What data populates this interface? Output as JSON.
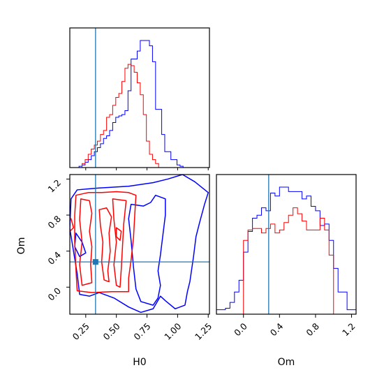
{
  "chart_data": {
    "type": "corner",
    "parameters": [
      "H0",
      "Om"
    ],
    "truth": {
      "H0": 0.33,
      "Om": 0.28
    },
    "colors": {
      "series_a": "#0000ff",
      "series_b": "#ff0000",
      "truth": "#1f77b4"
    },
    "axes": {
      "H0": {
        "label": "H0",
        "range": [
          0.12,
          1.26
        ],
        "ticks": [
          0.25,
          0.5,
          0.75,
          1.0,
          1.25
        ],
        "tick_labels": [
          "0.25",
          "0.50",
          "0.75",
          "1.00",
          "1.25"
        ]
      },
      "Om": {
        "label": "Om",
        "range": [
          -0.3,
          1.25
        ],
        "ticks": [
          0.0,
          0.4,
          0.8,
          1.2
        ],
        "tick_labels": [
          "0.0",
          "0.4",
          "0.8",
          "1.2"
        ]
      }
    },
    "hist_H0": {
      "edges": [
        0.12,
        0.145,
        0.17,
        0.195,
        0.22,
        0.245,
        0.27,
        0.295,
        0.32,
        0.345,
        0.37,
        0.395,
        0.42,
        0.445,
        0.47,
        0.495,
        0.52,
        0.545,
        0.57,
        0.595,
        0.62,
        0.645,
        0.67,
        0.695,
        0.72,
        0.745,
        0.77,
        0.795,
        0.82,
        0.845,
        0.87,
        0.895,
        0.92,
        0.945,
        0.97,
        0.995,
        1.02,
        1.045,
        1.07,
        1.095,
        1.12,
        1.145,
        1.17,
        1.195,
        1.22,
        1.245
      ],
      "series": [
        {
          "color": "#0000ff",
          "values": [
            0,
            0,
            0,
            0.01,
            0.02,
            0.04,
            0.06,
            0.09,
            0.12,
            0.15,
            0.18,
            0.22,
            0.24,
            0.28,
            0.34,
            0.38,
            0.39,
            0.4,
            0.43,
            0.58,
            0.82,
            0.82,
            0.88,
            0.96,
            0.96,
            0.96,
            0.92,
            0.8,
            0.44,
            0.44,
            0.25,
            0.12,
            0.12,
            0.06,
            0.06,
            0.02,
            0.01,
            0,
            0,
            0,
            0,
            0,
            0,
            0,
            0
          ]
        },
        {
          "color": "#ff0000",
          "values": [
            0,
            0,
            0,
            0,
            0.03,
            0.06,
            0.1,
            0.14,
            0.17,
            0.2,
            0.25,
            0.28,
            0.38,
            0.4,
            0.47,
            0.53,
            0.56,
            0.65,
            0.75,
            0.78,
            0.77,
            0.72,
            0.64,
            0.55,
            0.4,
            0.2,
            0.1,
            0.06,
            0.03,
            0,
            0,
            0,
            0,
            0,
            0,
            0,
            0,
            0,
            0,
            0,
            0,
            0,
            0,
            0,
            0
          ]
        }
      ]
    },
    "hist_Om": {
      "edges": [
        -0.3,
        -0.25,
        -0.2,
        -0.15,
        -0.1,
        -0.05,
        0.0,
        0.05,
        0.1,
        0.15,
        0.2,
        0.25,
        0.3,
        0.35,
        0.4,
        0.45,
        0.5,
        0.55,
        0.6,
        0.65,
        0.7,
        0.75,
        0.8,
        0.85,
        0.9,
        0.95,
        1.0,
        1.05,
        1.1,
        1.15,
        1.2,
        1.25
      ],
      "series": [
        {
          "color": "#0000ff",
          "values": [
            0.03,
            0.03,
            0.04,
            0.08,
            0.15,
            0.23,
            0.42,
            0.56,
            0.65,
            0.67,
            0.72,
            0.7,
            0.82,
            0.8,
            0.86,
            0.86,
            0.83,
            0.83,
            0.83,
            0.78,
            0.8,
            0.73,
            0.7,
            0.6,
            0.61,
            0.5,
            0.31,
            0.15,
            0.15,
            0.03,
            0.03
          ]
        },
        {
          "color": "#ff0000",
          "values": [
            0,
            0,
            0,
            0,
            0,
            0,
            0.5,
            0.57,
            0.58,
            0.58,
            0.55,
            0.58,
            0.61,
            0.55,
            0.57,
            0.62,
            0.67,
            0.72,
            0.68,
            0.63,
            0.57,
            0.57,
            0.57,
            0.65,
            0.57,
            0.4,
            0,
            0,
            0,
            0,
            0
          ]
        }
      ]
    },
    "contours": [
      {
        "color": "#0000ff",
        "paths": [
          [
            [
              0.13,
              0.98
            ],
            [
              0.18,
              1.08
            ],
            [
              0.35,
              1.1
            ],
            [
              0.6,
              1.12
            ],
            [
              0.8,
              1.16
            ],
            [
              0.92,
              1.2
            ],
            [
              1.04,
              1.25
            ],
            [
              1.14,
              1.17
            ],
            [
              1.25,
              1.05
            ],
            [
              1.22,
              0.92
            ],
            [
              1.18,
              0.72
            ],
            [
              1.15,
              0.56
            ],
            [
              1.13,
              0.34
            ],
            [
              1.1,
              0.06
            ],
            [
              1.08,
              -0.05
            ],
            [
              1.06,
              -0.2
            ],
            [
              0.98,
              -0.24
            ],
            [
              0.9,
              -0.15
            ],
            [
              0.86,
              -0.1
            ],
            [
              0.8,
              -0.24
            ],
            [
              0.7,
              -0.28
            ],
            [
              0.6,
              -0.22
            ],
            [
              0.48,
              -0.12
            ],
            [
              0.36,
              -0.06
            ],
            [
              0.28,
              -0.1
            ],
            [
              0.2,
              -0.08
            ],
            [
              0.18,
              0.15
            ],
            [
              0.15,
              0.4
            ],
            [
              0.12,
              0.65
            ],
            [
              0.13,
              0.98
            ]
          ],
          [
            [
              0.62,
              0.92
            ],
            [
              0.72,
              0.9
            ],
            [
              0.78,
              0.94
            ],
            [
              0.82,
              1.02
            ],
            [
              0.9,
              0.98
            ],
            [
              0.9,
              0.8
            ],
            [
              0.88,
              0.58
            ],
            [
              0.86,
              0.36
            ],
            [
              0.84,
              0.18
            ],
            [
              0.86,
              0.02
            ],
            [
              0.84,
              -0.12
            ],
            [
              0.8,
              -0.2
            ],
            [
              0.7,
              -0.16
            ],
            [
              0.66,
              -0.02
            ],
            [
              0.64,
              0.22
            ],
            [
              0.62,
              0.52
            ],
            [
              0.6,
              0.76
            ],
            [
              0.62,
              0.92
            ]
          ],
          [
            [
              0.17,
              0.6
            ],
            [
              0.22,
              0.5
            ],
            [
              0.25,
              0.38
            ],
            [
              0.2,
              0.34
            ],
            [
              0.16,
              0.45
            ],
            [
              0.17,
              0.6
            ]
          ]
        ]
      },
      {
        "color": "#ff0000",
        "paths": [
          [
            [
              0.17,
              1.02
            ],
            [
              0.27,
              1.05
            ],
            [
              0.38,
              1.05
            ],
            [
              0.5,
              1.06
            ],
            [
              0.6,
              1.05
            ],
            [
              0.66,
              1.02
            ],
            [
              0.65,
              0.8
            ],
            [
              0.64,
              0.55
            ],
            [
              0.62,
              0.3
            ],
            [
              0.6,
              0.1
            ],
            [
              0.6,
              -0.05
            ],
            [
              0.46,
              -0.05
            ],
            [
              0.3,
              -0.06
            ],
            [
              0.18,
              -0.04
            ],
            [
              0.17,
              0.2
            ],
            [
              0.16,
              0.5
            ],
            [
              0.16,
              0.8
            ],
            [
              0.17,
              1.02
            ]
          ],
          [
            [
              0.21,
              0.98
            ],
            [
              0.28,
              0.96
            ],
            [
              0.3,
              0.82
            ],
            [
              0.28,
              0.62
            ],
            [
              0.3,
              0.45
            ],
            [
              0.29,
              0.25
            ],
            [
              0.3,
              0.05
            ],
            [
              0.22,
              0.02
            ],
            [
              0.2,
              0.25
            ],
            [
              0.22,
              0.5
            ],
            [
              0.2,
              0.75
            ],
            [
              0.21,
              0.98
            ]
          ],
          [
            [
              0.36,
              0.86
            ],
            [
              0.42,
              0.88
            ],
            [
              0.46,
              0.78
            ],
            [
              0.44,
              0.6
            ],
            [
              0.45,
              0.4
            ],
            [
              0.43,
              0.18
            ],
            [
              0.44,
              0.06
            ],
            [
              0.4,
              0.08
            ],
            [
              0.38,
              0.28
            ],
            [
              0.39,
              0.5
            ],
            [
              0.37,
              0.68
            ],
            [
              0.36,
              0.86
            ]
          ],
          [
            [
              0.47,
              0.98
            ],
            [
              0.58,
              0.96
            ],
            [
              0.56,
              0.7
            ],
            [
              0.55,
              0.45
            ],
            [
              0.54,
              0.2
            ],
            [
              0.53,
              0.0
            ],
            [
              0.5,
              0.02
            ],
            [
              0.48,
              0.25
            ],
            [
              0.5,
              0.5
            ],
            [
              0.48,
              0.75
            ],
            [
              0.47,
              0.98
            ]
          ],
          [
            [
              0.1,
              0.78
            ],
            [
              0.13,
              0.76
            ],
            [
              0.15,
              0.66
            ],
            [
              0.12,
              0.62
            ],
            [
              0.1,
              0.7
            ],
            [
              0.1,
              0.78
            ]
          ],
          [
            [
              0.5,
              0.66
            ],
            [
              0.54,
              0.62
            ],
            [
              0.53,
              0.52
            ],
            [
              0.5,
              0.56
            ],
            [
              0.5,
              0.66
            ]
          ]
        ]
      }
    ]
  }
}
